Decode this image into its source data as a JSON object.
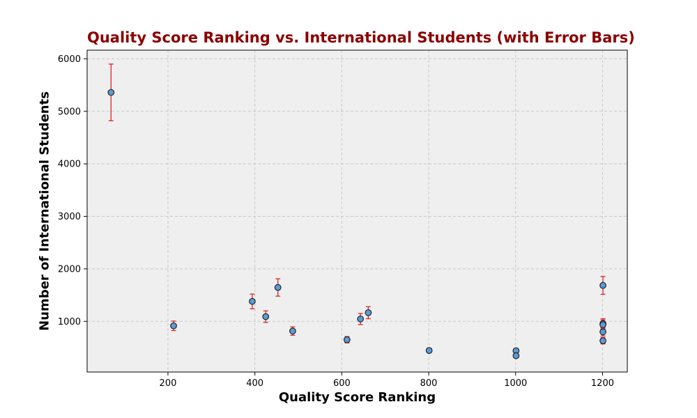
{
  "chart_data": {
    "type": "scatter",
    "title": "Quality Score Ranking vs. International Students (with Error Bars)",
    "xlabel": "Quality Score Ranking",
    "ylabel": "Number of International Students",
    "xlim": [
      14,
      1257
    ],
    "ylim": [
      35,
      6165
    ],
    "x_ticks": [
      200,
      400,
      600,
      800,
      1000,
      1200
    ],
    "y_ticks": [
      1000,
      2000,
      3000,
      4000,
      5000,
      6000
    ],
    "grid": true,
    "grid_style": "dashed",
    "points": [
      {
        "x": 69,
        "y": 5360,
        "err": 540
      },
      {
        "x": 213,
        "y": 915,
        "err": 90
      },
      {
        "x": 394,
        "y": 1380,
        "err": 140
      },
      {
        "x": 425,
        "y": 1090,
        "err": 110
      },
      {
        "x": 453,
        "y": 1645,
        "err": 165
      },
      {
        "x": 487,
        "y": 815,
        "err": 80
      },
      {
        "x": 612,
        "y": 650,
        "err": 60
      },
      {
        "x": 643,
        "y": 1045,
        "err": 105
      },
      {
        "x": 661,
        "y": 1165,
        "err": 115
      },
      {
        "x": 801,
        "y": 445,
        "err": 40
      },
      {
        "x": 1001,
        "y": 440,
        "err": 40
      },
      {
        "x": 1001,
        "y": 345,
        "err": 30
      },
      {
        "x": 1201,
        "y": 1685,
        "err": 170
      },
      {
        "x": 1201,
        "y": 955,
        "err": 95
      },
      {
        "x": 1201,
        "y": 935,
        "err": 90
      },
      {
        "x": 1201,
        "y": 800,
        "err": 80
      },
      {
        "x": 1201,
        "y": 630,
        "err": 60
      }
    ],
    "colors": {
      "marker_fill": "#5b9bd5",
      "marker_edge": "#1a1a1a",
      "error_bar": "#d62728",
      "plot_background": "#efefef",
      "grid": "#c8c8c8",
      "title": "#8b0000"
    }
  }
}
